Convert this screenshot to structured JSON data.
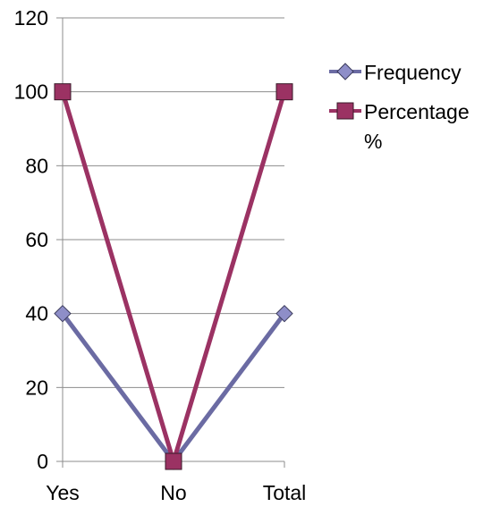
{
  "chart_data": {
    "type": "line",
    "categories": [
      "Yes",
      "No",
      "Total"
    ],
    "series": [
      {
        "name": "Frequency",
        "values": [
          40,
          0,
          40
        ],
        "color": "#6B6BA3",
        "marker": "diamond"
      },
      {
        "name": "Percentage %",
        "values": [
          100,
          0,
          100
        ],
        "color": "#9B3263",
        "marker": "square"
      }
    ],
    "yticks": [
      0,
      20,
      40,
      60,
      80,
      100,
      120
    ],
    "ylim": [
      0,
      120
    ],
    "grid": true,
    "legend_position": "right",
    "title": "",
    "xlabel": "",
    "ylabel": ""
  },
  "legend": {
    "item1": "Frequency",
    "item2_line1": "Percentage",
    "item2_line2": "%"
  }
}
